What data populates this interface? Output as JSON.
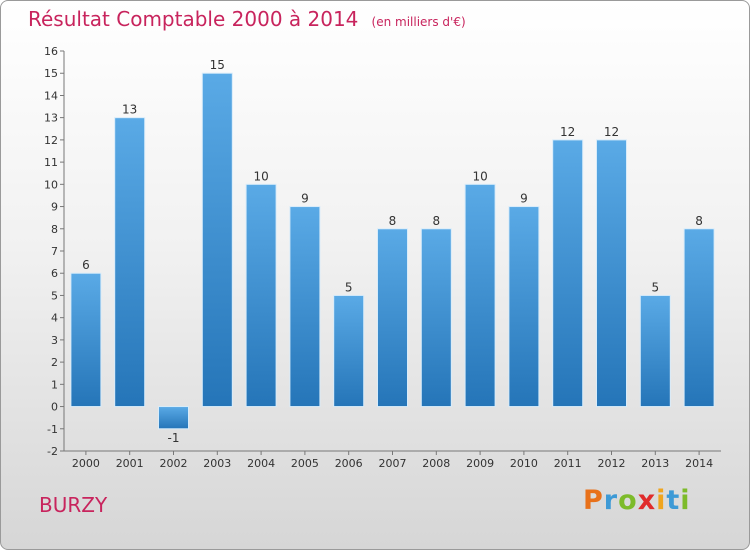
{
  "header": {
    "title": "Résultat Comptable 2000 à 2014",
    "subtitle": "(en milliers d'€)"
  },
  "footer": {
    "commune": "BURZY",
    "brand": [
      "P",
      "r",
      "o",
      "x",
      "i",
      "t",
      "i"
    ]
  },
  "colors": {
    "accent": "#c8245d",
    "bar_top": "#5aaae6",
    "bar_bottom": "#2575b8",
    "brand": [
      "#e8711a",
      "#3d9ad6",
      "#7dbb2a",
      "#e02b2b",
      "#f0a51e",
      "#3d9ad6",
      "#7dbb2a"
    ]
  },
  "chart_data": {
    "type": "bar",
    "title": "Résultat Comptable 2000 à 2014",
    "subtitle": "(en milliers d'€)",
    "xlabel": "",
    "ylabel": "",
    "categories": [
      "2000",
      "2001",
      "2002",
      "2003",
      "2004",
      "2005",
      "2006",
      "2007",
      "2008",
      "2009",
      "2010",
      "2011",
      "2012",
      "2013",
      "2014"
    ],
    "values": [
      6,
      13,
      -1,
      15,
      10,
      9,
      5,
      8,
      8,
      10,
      9,
      12,
      12,
      5,
      8
    ],
    "data_labels": [
      "6",
      "13",
      "-1",
      "15",
      "10",
      "9",
      "5",
      "8",
      "8",
      "10",
      "9",
      "12",
      "12",
      "5",
      "8"
    ],
    "ylim": [
      -2,
      16
    ],
    "yticks": [
      -2,
      -1,
      0,
      1,
      2,
      3,
      4,
      5,
      6,
      7,
      8,
      9,
      10,
      11,
      12,
      13,
      14,
      15,
      16
    ],
    "ytick_labels": [
      "-2",
      "-1",
      "0",
      "1",
      "2",
      "3",
      "4",
      "5",
      "6",
      "7",
      "8",
      "9",
      "10",
      "11",
      "12",
      "13",
      "14",
      "15",
      "16"
    ],
    "grid": false,
    "legend": "none"
  }
}
